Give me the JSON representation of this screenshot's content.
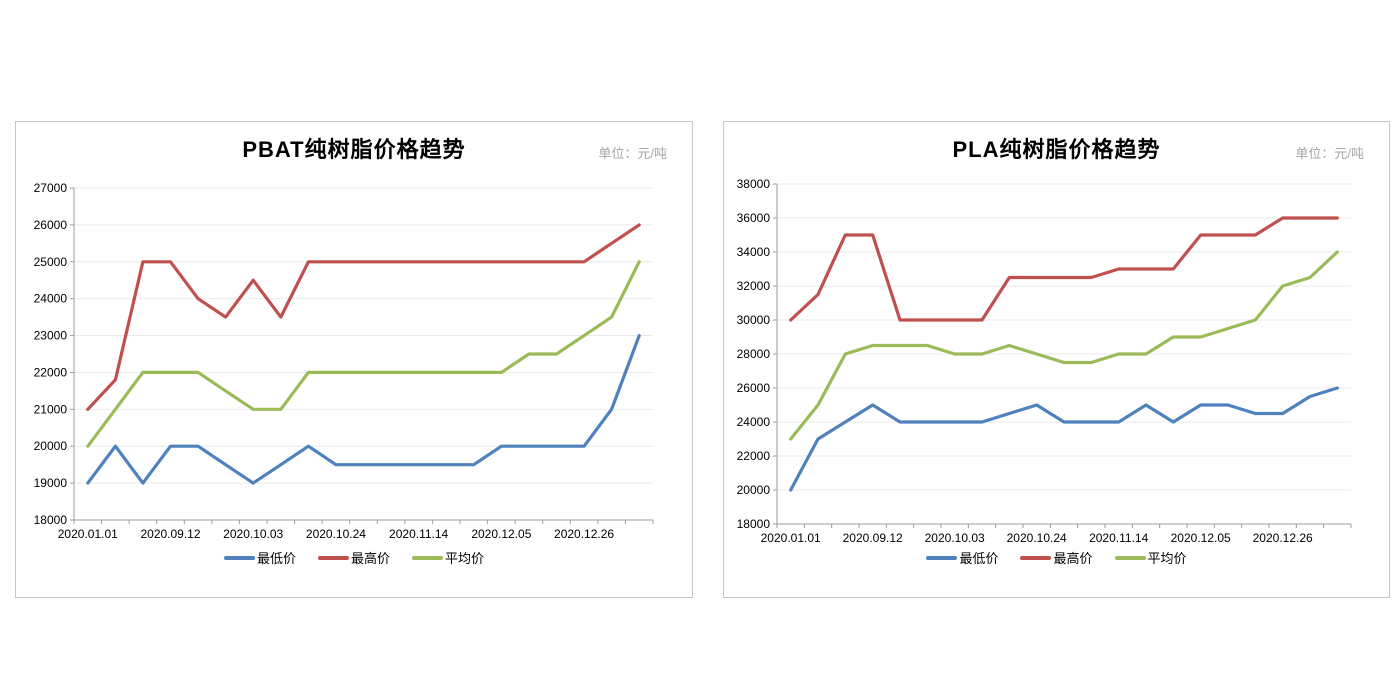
{
  "chart_data": [
    {
      "type": "line",
      "title": "PBAT纯树脂价格趋势",
      "unit_label": "单位：元/吨",
      "ylim": [
        18000,
        27000
      ],
      "ystep": 1000,
      "y_ticks": [
        18000,
        19000,
        20000,
        21000,
        22000,
        23000,
        24000,
        25000,
        26000,
        27000
      ],
      "grid": "horizontal",
      "legend_position": "bottom",
      "n_points": 21,
      "x_tick_labels": [
        "2020.01.01",
        "2020.09.12",
        "2020.10.03",
        "2020.10.24",
        "2020.11.14",
        "2020.12.05",
        "2020.12.26"
      ],
      "x_tick_points": [
        1,
        4,
        7,
        10,
        13,
        16,
        19
      ],
      "series": [
        {
          "name": "最低价",
          "color": "#4F81BD",
          "values": [
            19000,
            20000,
            19000,
            20000,
            20000,
            19500,
            19000,
            19500,
            20000,
            19500,
            19500,
            19500,
            19500,
            19500,
            19500,
            20000,
            20000,
            20000,
            20000,
            21000,
            23000
          ]
        },
        {
          "name": "最高价",
          "color": "#C0504D",
          "values": [
            21000,
            21800,
            25000,
            25000,
            24000,
            23500,
            24500,
            23500,
            25000,
            25000,
            25000,
            25000,
            25000,
            25000,
            25000,
            25000,
            25000,
            25000,
            25000,
            25500,
            26000
          ]
        },
        {
          "name": "平均价",
          "color": "#9BBB59",
          "values": [
            20000,
            21000,
            22000,
            22000,
            22000,
            21500,
            21000,
            21000,
            22000,
            22000,
            22000,
            22000,
            22000,
            22000,
            22000,
            22000,
            22500,
            22500,
            23000,
            23500,
            25000
          ]
        }
      ]
    },
    {
      "type": "line",
      "title": "PLA纯树脂价格趋势",
      "unit_label": "单位：元/吨",
      "ylim": [
        18000,
        38000
      ],
      "ystep": 2000,
      "y_ticks": [
        18000,
        20000,
        22000,
        24000,
        26000,
        28000,
        30000,
        32000,
        34000,
        36000,
        38000
      ],
      "grid": "horizontal",
      "legend_position": "bottom",
      "n_points": 21,
      "x_tick_labels": [
        "2020.01.01",
        "2020.09.12",
        "2020.10.03",
        "2020.10.24",
        "2020.11.14",
        "2020.12.05",
        "2020.12.26"
      ],
      "x_tick_points": [
        1,
        4,
        7,
        10,
        13,
        16,
        19
      ],
      "series": [
        {
          "name": "最低价",
          "color": "#4F81BD",
          "values": [
            20000,
            23000,
            24000,
            25000,
            24000,
            24000,
            24000,
            24000,
            24500,
            25000,
            24000,
            24000,
            24000,
            25000,
            24000,
            25000,
            25000,
            24500,
            24500,
            25500,
            26000
          ]
        },
        {
          "name": "最高价",
          "color": "#C0504D",
          "values": [
            30000,
            31500,
            35000,
            35000,
            30000,
            30000,
            30000,
            30000,
            32500,
            32500,
            32500,
            32500,
            33000,
            33000,
            33000,
            35000,
            35000,
            35000,
            36000,
            36000,
            36000
          ]
        },
        {
          "name": "平均价",
          "color": "#9BBB59",
          "values": [
            23000,
            25000,
            28000,
            28500,
            28500,
            28500,
            28000,
            28000,
            28500,
            28000,
            27500,
            27500,
            28000,
            28000,
            29000,
            29000,
            29500,
            30000,
            32000,
            32500,
            34000
          ]
        }
      ]
    }
  ],
  "style": {
    "gridline_color": "#ebebeb",
    "axis_color": "#9c9c9c",
    "label_color": "#000000",
    "unit_color": "#a6a6a6"
  }
}
